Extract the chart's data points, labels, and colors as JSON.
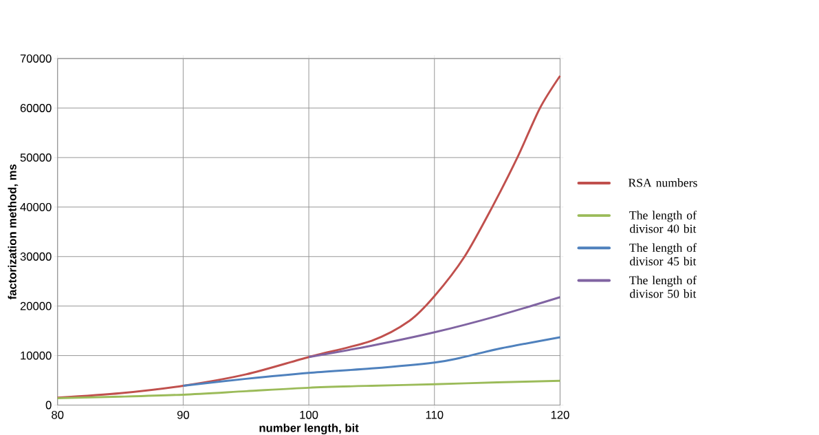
{
  "chart_data": {
    "type": "line",
    "xlabel": "number length, bit",
    "ylabel": "factorization  method, ms",
    "xlim": [
      80,
      120
    ],
    "xticks": [
      80,
      90,
      100,
      110,
      120
    ],
    "ylim": [
      0,
      70000
    ],
    "yticks": [
      0,
      10000,
      20000,
      30000,
      40000,
      50000,
      60000,
      70000
    ],
    "grid": true,
    "legend": "right",
    "marker": "none",
    "line_style": "solid",
    "series": [
      {
        "name": "RSA numbers",
        "color": "#c0504d",
        "x": [
          80,
          85,
          90,
          95,
          100,
          105,
          108,
          110,
          112.4,
          114.6,
          116.6,
          118.4,
          120
        ],
        "values": [
          1500,
          2400,
          3900,
          6200,
          9700,
          13000,
          17000,
          22000,
          30000,
          40000,
          50000,
          60000,
          66500
        ]
      },
      {
        "name": "The length of divisor 40 bit",
        "color": "#9bbb59",
        "x": [
          80,
          85,
          90,
          95,
          100,
          105,
          110,
          115,
          120
        ],
        "values": [
          1400,
          1700,
          2100,
          2800,
          3500,
          3900,
          4200,
          4600,
          4900
        ]
      },
      {
        "name": "The length of divisor 45 bit",
        "color": "#4f81bd",
        "x": [
          90,
          95,
          100,
          105,
          110,
          112,
          115,
          120
        ],
        "values": [
          3900,
          5300,
          6500,
          7400,
          8600,
          9500,
          11300,
          13700
        ]
      },
      {
        "name": "The length of divisor 50 bit",
        "color": "#8064a2",
        "x": [
          100,
          105,
          110,
          115,
          120
        ],
        "values": [
          9700,
          12000,
          14700,
          18000,
          21800
        ]
      }
    ]
  }
}
